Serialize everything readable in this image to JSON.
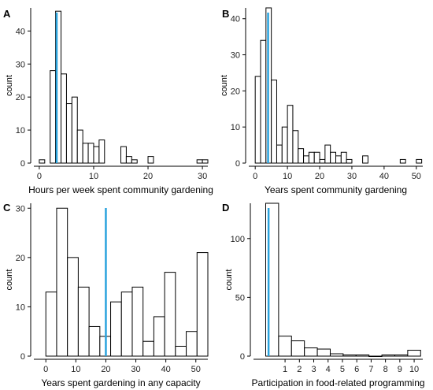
{
  "chart_data": [
    {
      "type": "bar",
      "panel": "A",
      "xlabel": "Hours per week spent community gardening",
      "ylabel": "count",
      "xlim": [
        -1,
        31
      ],
      "ylim": [
        0,
        47
      ],
      "xticks": [
        0,
        10,
        20,
        30
      ],
      "yticks": [
        0,
        10,
        20,
        30,
        40
      ],
      "binwidth": 1,
      "bins": [
        {
          "x": 0,
          "count": 1
        },
        {
          "x": 2,
          "count": 28
        },
        {
          "x": 3,
          "count": 46
        },
        {
          "x": 4,
          "count": 27
        },
        {
          "x": 5,
          "count": 18
        },
        {
          "x": 6,
          "count": 20
        },
        {
          "x": 7,
          "count": 10
        },
        {
          "x": 8,
          "count": 6
        },
        {
          "x": 9,
          "count": 6
        },
        {
          "x": 10,
          "count": 5
        },
        {
          "x": 11,
          "count": 7
        },
        {
          "x": 15,
          "count": 5
        },
        {
          "x": 16,
          "count": 2
        },
        {
          "x": 17,
          "count": 1
        },
        {
          "x": 20,
          "count": 2
        },
        {
          "x": 29,
          "count": 1
        },
        {
          "x": 30,
          "count": 1
        }
      ],
      "marker": 3.2
    },
    {
      "type": "bar",
      "panel": "B",
      "xlabel": "Years spent community gardening",
      "ylabel": "count",
      "xlim": [
        -2,
        52
      ],
      "ylim": [
        0,
        43
      ],
      "xticks": [
        0,
        10,
        20,
        30,
        40,
        50
      ],
      "yticks": [
        0,
        10,
        20,
        30,
        40
      ],
      "binwidth": 1.6667,
      "bins": [
        {
          "x": 0,
          "count": 24
        },
        {
          "x": 1.6667,
          "count": 34
        },
        {
          "x": 3.3333,
          "count": 43
        },
        {
          "x": 5,
          "count": 23
        },
        {
          "x": 6.6667,
          "count": 5
        },
        {
          "x": 8.3333,
          "count": 10
        },
        {
          "x": 10,
          "count": 16
        },
        {
          "x": 11.6667,
          "count": 9
        },
        {
          "x": 13.3333,
          "count": 4
        },
        {
          "x": 15,
          "count": 2
        },
        {
          "x": 16.6667,
          "count": 3
        },
        {
          "x": 18.3333,
          "count": 3
        },
        {
          "x": 20,
          "count": 1
        },
        {
          "x": 21.6667,
          "count": 5
        },
        {
          "x": 23.3333,
          "count": 3
        },
        {
          "x": 25,
          "count": 2
        },
        {
          "x": 26.6667,
          "count": 3
        },
        {
          "x": 28.3333,
          "count": 1
        },
        {
          "x": 33.3333,
          "count": 2
        },
        {
          "x": 45,
          "count": 1
        },
        {
          "x": 50,
          "count": 1
        }
      ],
      "marker": 4
    },
    {
      "type": "bar",
      "panel": "C",
      "xlabel": "Years spent gardening in any capacity",
      "ylabel": "count",
      "xlim": [
        -4,
        54
      ],
      "ylim": [
        0,
        31
      ],
      "xticks": [
        0,
        10,
        20,
        30,
        40,
        50
      ],
      "yticks": [
        0,
        10,
        20,
        30
      ],
      "binwidth": 3.6,
      "bins": [
        {
          "x": 0,
          "count": 13
        },
        {
          "x": 3.6,
          "count": 30
        },
        {
          "x": 7.2,
          "count": 20
        },
        {
          "x": 10.8,
          "count": 14
        },
        {
          "x": 14.4,
          "count": 6
        },
        {
          "x": 18,
          "count": 4
        },
        {
          "x": 21.6,
          "count": 11
        },
        {
          "x": 25.2,
          "count": 13
        },
        {
          "x": 28.8,
          "count": 14
        },
        {
          "x": 32.4,
          "count": 3
        },
        {
          "x": 36,
          "count": 8
        },
        {
          "x": 39.6,
          "count": 17
        },
        {
          "x": 43.2,
          "count": 2
        },
        {
          "x": 46.8,
          "count": 5
        },
        {
          "x": 50.4,
          "count": 21
        }
      ],
      "marker": 20
    },
    {
      "type": "bar",
      "panel": "D",
      "xlabel": "Participation in food-related programming",
      "ylabel": "count",
      "xlim": [
        -1.2,
        10.6
      ],
      "ylim": [
        0,
        130
      ],
      "xticks": [
        1,
        2,
        3,
        4,
        5,
        6,
        7,
        8,
        9,
        10
      ],
      "yticks": [
        0,
        50,
        100
      ],
      "binwidth": 0.9,
      "bins": [
        {
          "x": -0.35,
          "count": 130
        },
        {
          "x": 0.55,
          "count": 17
        },
        {
          "x": 1.45,
          "count": 13
        },
        {
          "x": 2.35,
          "count": 7
        },
        {
          "x": 3.25,
          "count": 6
        },
        {
          "x": 4.15,
          "count": 2
        },
        {
          "x": 5.05,
          "count": 1
        },
        {
          "x": 5.95,
          "count": 1
        },
        {
          "x": 6.85,
          "count": 0
        },
        {
          "x": 7.75,
          "count": 1
        },
        {
          "x": 8.65,
          "count": 1
        },
        {
          "x": 9.55,
          "count": 5
        }
      ],
      "marker": -0.15
    }
  ]
}
